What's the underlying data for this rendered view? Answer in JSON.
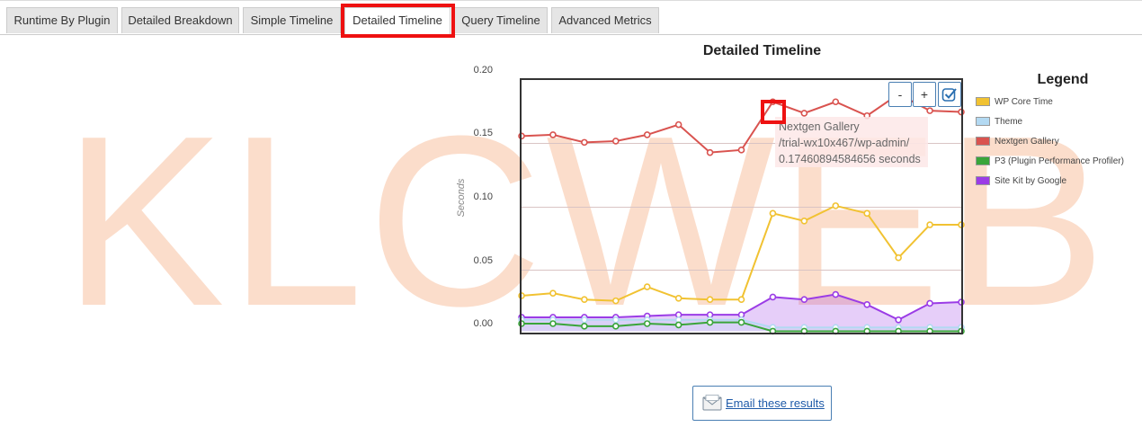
{
  "tabs": [
    {
      "label": "Runtime By Plugin"
    },
    {
      "label": "Detailed Breakdown"
    },
    {
      "label": "Simple Timeline"
    },
    {
      "label": "Detailed Timeline",
      "active": true
    },
    {
      "label": "Query Timeline"
    },
    {
      "label": "Advanced Metrics"
    }
  ],
  "watermark": "KLCWEB",
  "chart": {
    "title": "Detailed Timeline",
    "ylabel": "Seconds",
    "yticks": [
      "0.20",
      "0.15",
      "0.10",
      "0.05",
      "0.00"
    ],
    "zoom_out_label": "-",
    "zoom_in_label": "+",
    "zoom_reset_icon": "checkbox-icon",
    "tooltip": {
      "series": "Nextgen Gallery",
      "url": "/trial-wx10x467/wp-admin/",
      "value": "0.17460894584656 seconds"
    }
  },
  "legend": {
    "title": "Legend",
    "items": [
      {
        "label": "WP Core Time",
        "color": "#f1c232"
      },
      {
        "label": "Theme",
        "color": "#b3d9f2"
      },
      {
        "label": "Nextgen Gallery",
        "color": "#d9534f"
      },
      {
        "label": "P3 (Plugin Performance Profiler)",
        "color": "#3aa53a"
      },
      {
        "label": "Site Kit by Google",
        "color": "#9b3ce6"
      }
    ]
  },
  "email_button": {
    "label": "Email these results",
    "icon": "envelope-icon"
  },
  "chart_data": {
    "type": "line",
    "x": [
      1,
      2,
      3,
      4,
      5,
      6,
      7,
      8,
      9,
      10,
      11,
      12,
      13,
      14,
      15
    ],
    "ylim": [
      -0.008,
      0.2
    ],
    "series": [
      {
        "name": "Nextgen Gallery",
        "color": "#d9534f",
        "values": [
          0.148,
          0.149,
          0.143,
          0.144,
          0.149,
          0.157,
          0.135,
          0.137,
          0.175,
          0.166,
          0.175,
          0.164,
          0.181,
          0.168,
          0.167
        ]
      },
      {
        "name": "WP Core Time",
        "color": "#f1c232",
        "values": [
          0.022,
          0.024,
          0.019,
          0.018,
          0.029,
          0.02,
          0.019,
          0.019,
          0.087,
          0.081,
          0.093,
          0.087,
          0.052,
          0.078,
          0.078
        ]
      },
      {
        "name": "Site Kit by Google",
        "color": "#9b3ce6",
        "values": [
          0.005,
          0.005,
          0.005,
          0.005,
          0.006,
          0.007,
          0.007,
          0.007,
          0.021,
          0.019,
          0.023,
          0.015,
          0.003,
          0.016,
          0.017
        ]
      },
      {
        "name": "Theme",
        "color": "#b3d9f2",
        "values": [
          0.003,
          0.003,
          0.003,
          0.003,
          0.003,
          0.003,
          0.003,
          0.003,
          -0.003,
          -0.003,
          -0.003,
          -0.003,
          -0.003,
          -0.003,
          -0.003
        ]
      },
      {
        "name": "P3 (Plugin Performance Profiler)",
        "color": "#3aa53a",
        "values": [
          0.0,
          0.0,
          -0.002,
          -0.002,
          0.0,
          -0.001,
          0.001,
          0.001,
          -0.006,
          -0.006,
          -0.006,
          -0.006,
          -0.006,
          -0.006,
          -0.006
        ]
      }
    ]
  }
}
